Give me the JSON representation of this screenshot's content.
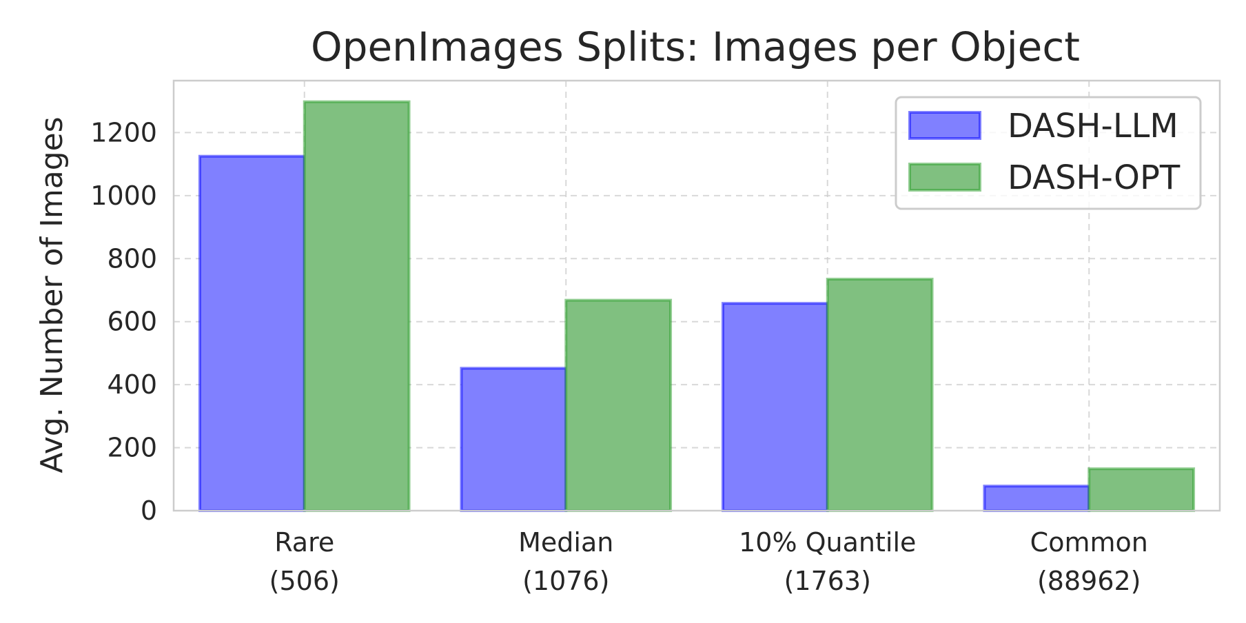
{
  "chart_data": {
    "type": "bar",
    "title": "OpenImages Splits: Images per Object",
    "xlabel": "",
    "ylabel": "Avg. Number of Images",
    "categories": [
      [
        "Rare",
        "(506)"
      ],
      [
        "Median",
        "(1076)"
      ],
      [
        "10% Quantile",
        "(1763)"
      ],
      [
        "Common",
        "(88962)"
      ]
    ],
    "series": [
      {
        "name": "DASH-LLM",
        "values": [
          1125,
          452,
          658,
          78
        ],
        "color": "#0000ff",
        "fill": "#8080ff"
      },
      {
        "name": "DASH-OPT",
        "values": [
          1298,
          668,
          735,
          133
        ],
        "color": "#2a9d2a",
        "fill": "#80c080"
      }
    ],
    "ylim": [
      0,
      1365
    ],
    "yticks": [
      0,
      200,
      400,
      600,
      800,
      1000,
      1200
    ],
    "grid": true,
    "legend": "top-right"
  }
}
